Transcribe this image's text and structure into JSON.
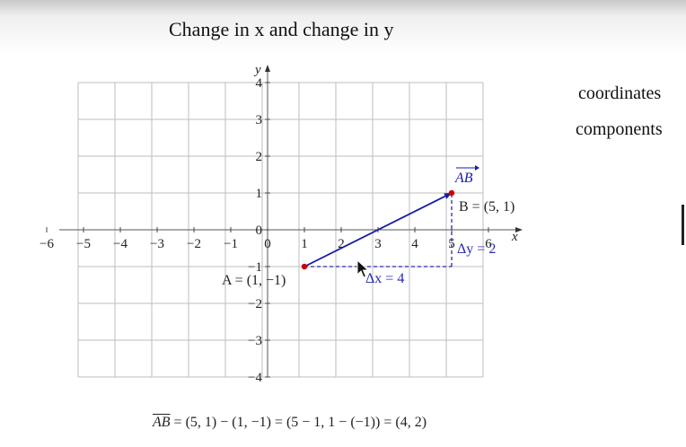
{
  "title": "Change in x and change in y",
  "menu": [
    {
      "label": "coordinates"
    },
    {
      "label": "components"
    }
  ],
  "chart_data": {
    "type": "scatter",
    "x_axis": {
      "label": "x",
      "range": [
        -6,
        6
      ],
      "ticks": [
        "−6",
        "−5",
        "−4",
        "−3",
        "−2",
        "−1",
        "0",
        "1",
        "2",
        "3",
        "4",
        "5",
        "6"
      ]
    },
    "y_axis": {
      "label": "y",
      "range": [
        -4,
        4
      ],
      "ticks": [
        "−4",
        "−3",
        "−2",
        "−1",
        "0",
        "1",
        "2",
        "3",
        "4"
      ]
    },
    "grid": true,
    "points": [
      {
        "id": "A",
        "x": 1,
        "y": -1,
        "label": "A = (1, −1)"
      },
      {
        "id": "B",
        "x": 5,
        "y": 1,
        "label": "B = (5, 1)"
      }
    ],
    "vector": {
      "from": [
        1,
        -1
      ],
      "to": [
        5,
        1
      ],
      "label": "AB",
      "color": "#1a1aa8"
    },
    "delta_x": {
      "label": "Δx = 4",
      "value": 4
    },
    "delta_y": {
      "label": "Δy = 2",
      "value": 2
    },
    "point_color": "#cc0000",
    "dash_color": "#2a2ab0"
  },
  "formula": "= (5, 1) − (1, −1) = (5 − 1, 1 − (−1)) = (4, 2)",
  "formula_vector": "AB"
}
